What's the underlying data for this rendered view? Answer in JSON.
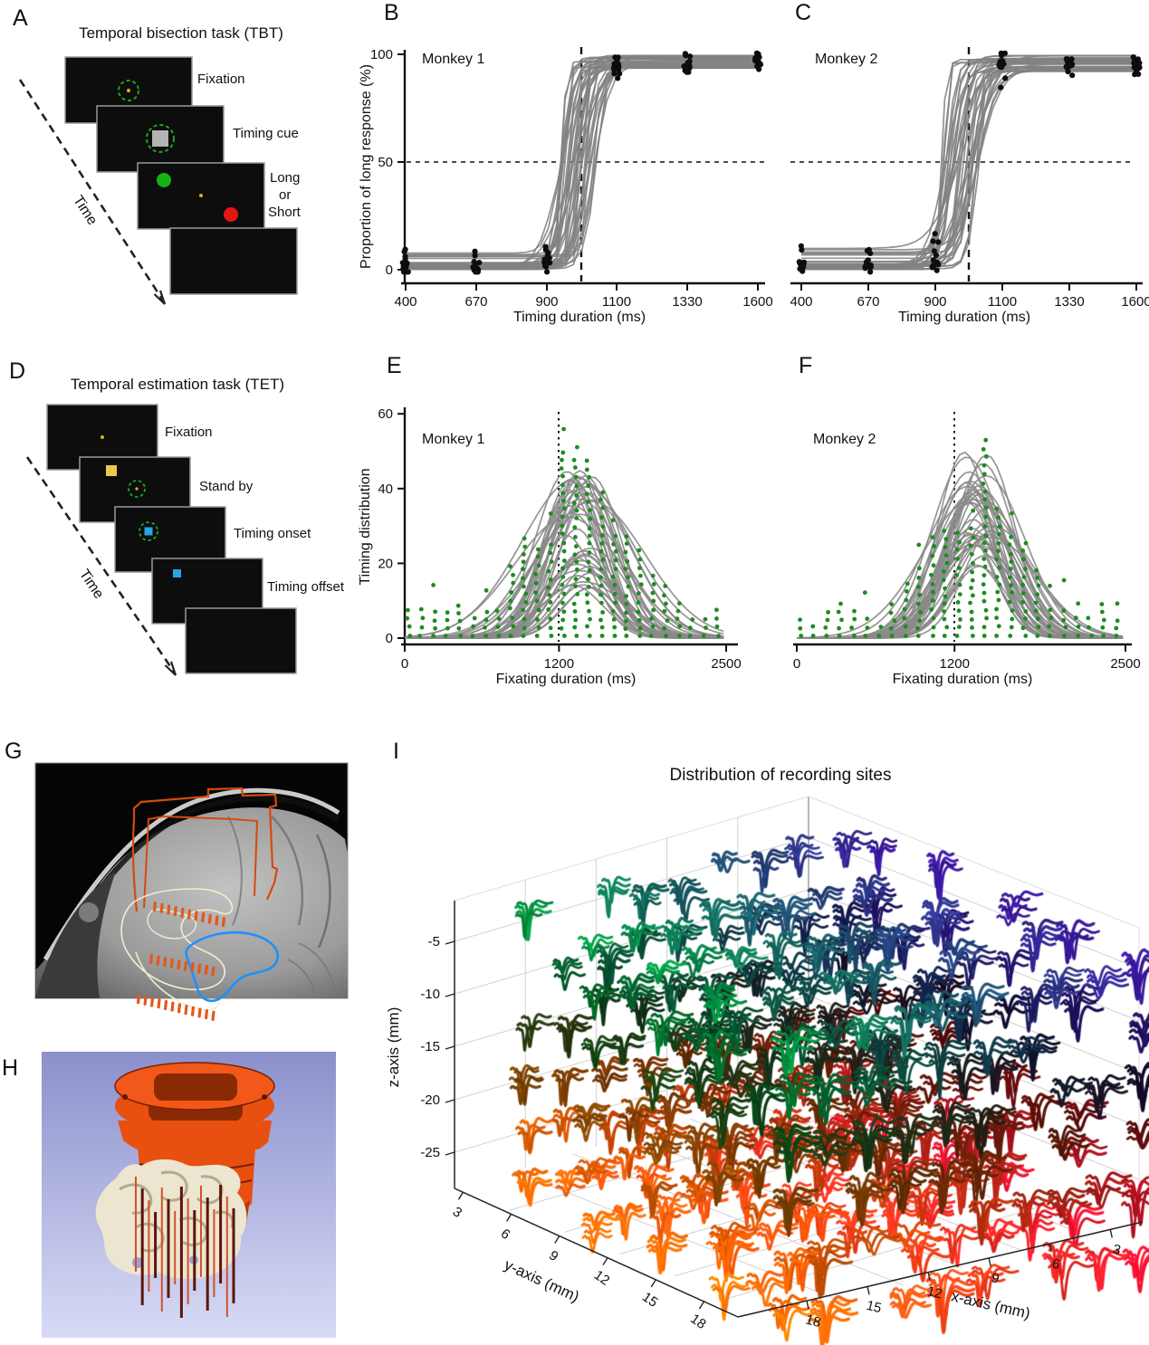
{
  "seed": 11,
  "panels": {
    "A": {
      "label": "A",
      "title": "Temporal bisection task (TBT)",
      "time_label": "Time",
      "captions": [
        "Fixation",
        "Timing cue"
      ],
      "choice": {
        "long": "Long",
        "or": "or",
        "short": "Short"
      }
    },
    "B": {
      "label": "B"
    },
    "C": {
      "label": "C"
    },
    "D": {
      "label": "D",
      "title": "Temporal estimation task (TET)",
      "time_label": "Time",
      "captions": [
        "Fixation",
        "Stand by",
        "Timing onset",
        "Timing offset"
      ]
    },
    "E": {
      "label": "E"
    },
    "F": {
      "label": "F"
    },
    "G": {
      "label": "G",
      "content_note": "Sagittal MRI with recording chamber outline, electrode tracks and outlined medial temporal structures"
    },
    "H": {
      "label": "H",
      "content_note": "3-D rendering of recording chamber, hippocampal surface and electrode tracks"
    },
    "I": {
      "label": "I"
    }
  },
  "chart_data": [
    {
      "id": "B",
      "type": "line",
      "title": "Monkey 1",
      "xlabel": "Timing duration (ms)",
      "ylabel": "Proportion of long response (%)",
      "x_ticks": [
        400,
        670,
        900,
        1100,
        1330,
        1600
      ],
      "y_ticks": [
        0,
        50,
        100
      ],
      "ylim": [
        0,
        100
      ],
      "reference_lines": {
        "horizontal_pct": 50,
        "vertical_ms": 1000
      },
      "sessions": 38,
      "sigmoid_midpoint_range_ms": [
        938,
        1045
      ],
      "sigmoid_slope_range_ms": [
        11,
        55
      ],
      "lapse_low_max_pct": 9,
      "upper_asymptote_pct": [
        93,
        99.5
      ],
      "dots_per_duration": 15,
      "curve_color": "#828282",
      "dot_color": "#0d0d0d"
    },
    {
      "id": "C",
      "type": "line",
      "title": "Monkey 2",
      "xlabel": "Timing duration (ms)",
      "ylabel": "",
      "x_ticks": [
        400,
        670,
        900,
        1100,
        1330,
        1600
      ],
      "y_ticks": [
        0,
        50,
        100
      ],
      "ylim": [
        0,
        100
      ],
      "reference_lines": {
        "horizontal_pct": 50,
        "vertical_ms": 1000
      },
      "sessions": 36,
      "sigmoid_midpoint_range_ms": [
        928,
        1035
      ],
      "sigmoid_slope_range_ms": [
        13,
        58
      ],
      "lapse_low_max_pct": 10,
      "upper_asymptote_pct": [
        92,
        99.5
      ],
      "dots_per_duration": 15,
      "curve_color": "#828282",
      "dot_color": "#0d0d0d"
    },
    {
      "id": "E",
      "type": "line",
      "title": "Monkey 1",
      "xlabel": "Fixating duration (ms)",
      "ylabel": "Timing distribution",
      "x_ticks": [
        0,
        1200,
        2500
      ],
      "y_ticks": [
        0,
        20,
        40,
        60
      ],
      "ylim": [
        0,
        60
      ],
      "reference_lines": {
        "vertical_ms": 1200
      },
      "sessions": 40,
      "gauss_amp_range": [
        12,
        45
      ],
      "gauss_mean_range_ms": [
        1250,
        1460
      ],
      "gauss_sd_range_ms": [
        160,
        420
      ],
      "dot_column_step_ms": 100,
      "dot_peak_value": 52,
      "curve_color": "#8a8a8a",
      "dot_color": "#1e8b22"
    },
    {
      "id": "F",
      "type": "line",
      "title": "Monkey 2",
      "xlabel": "Fixating duration (ms)",
      "ylabel": "",
      "x_ticks": [
        0,
        1200,
        2500
      ],
      "y_ticks": [
        0,
        20,
        40,
        60
      ],
      "ylim": [
        0,
        60
      ],
      "reference_lines": {
        "vertical_ms": 1200
      },
      "sessions": 40,
      "gauss_amp_range": [
        14,
        50
      ],
      "gauss_mean_range_ms": [
        1270,
        1500
      ],
      "gauss_sd_range_ms": [
        150,
        380
      ],
      "dot_column_step_ms": 100,
      "dot_peak_value": 55,
      "curve_color": "#8a8a8a",
      "dot_color": "#1e8b22"
    },
    {
      "id": "I",
      "type": "scatter3d",
      "title": "Distribution of recording sites",
      "xlabel": "x-axis (mm)",
      "ylabel": "y-axis (mm)",
      "zlabel": "z-axis (mm)",
      "x_ticks": [
        18,
        15,
        12,
        9,
        6,
        3
      ],
      "y_ticks": [
        3,
        6,
        9,
        12,
        15,
        18
      ],
      "z_ticks": [
        -5,
        -10,
        -15,
        -20,
        -25
      ],
      "x_range_mm": [
        3,
        18
      ],
      "y_range_mm": [
        3,
        18
      ],
      "z_range_mm": [
        -27,
        -2
      ],
      "grid_counts": {
        "x": 10,
        "y": 5,
        "z": 6
      },
      "glyph": "spike-waveform-cluster",
      "color_mapping": "RGB encodes 3-D site position: blue dorsal-left, green dorsal-right, crimson ventral-left, orange ventral-right"
    }
  ],
  "colors": {
    "screen_bg": "#0d0d0d",
    "screen_border": "#9a9a9a",
    "fix_circle_green": "#1fa51f",
    "fix_dot_yellow": "#d8b41e",
    "cue_gray": "#b3b3b3",
    "choice_green": "#13b413",
    "choice_red": "#e81414",
    "tet_yellow": "#ecc94b",
    "tet_blue": "#2aa3e8",
    "long_text": "#00c800",
    "short_text": "#ee1111",
    "chamber_outline_orange": "#d64a0c",
    "track_orange": "#e2591c",
    "structure_cream": "#f2edd0",
    "structure_blue": "#1e90ff",
    "h_bg_top": "#8b90cc",
    "h_bg_bottom": "#d8dbf5",
    "h_chamber": "#e8500f",
    "h_chamber_dark": "#8a2a05",
    "h_brain": "#ece5cf",
    "h_brain_crease": "#b3aa8e",
    "electrode_light": "#d4502a",
    "electrode_dark": "#5e150a",
    "axis_color": "#222222",
    "grid3d": "#d2d2d2"
  }
}
